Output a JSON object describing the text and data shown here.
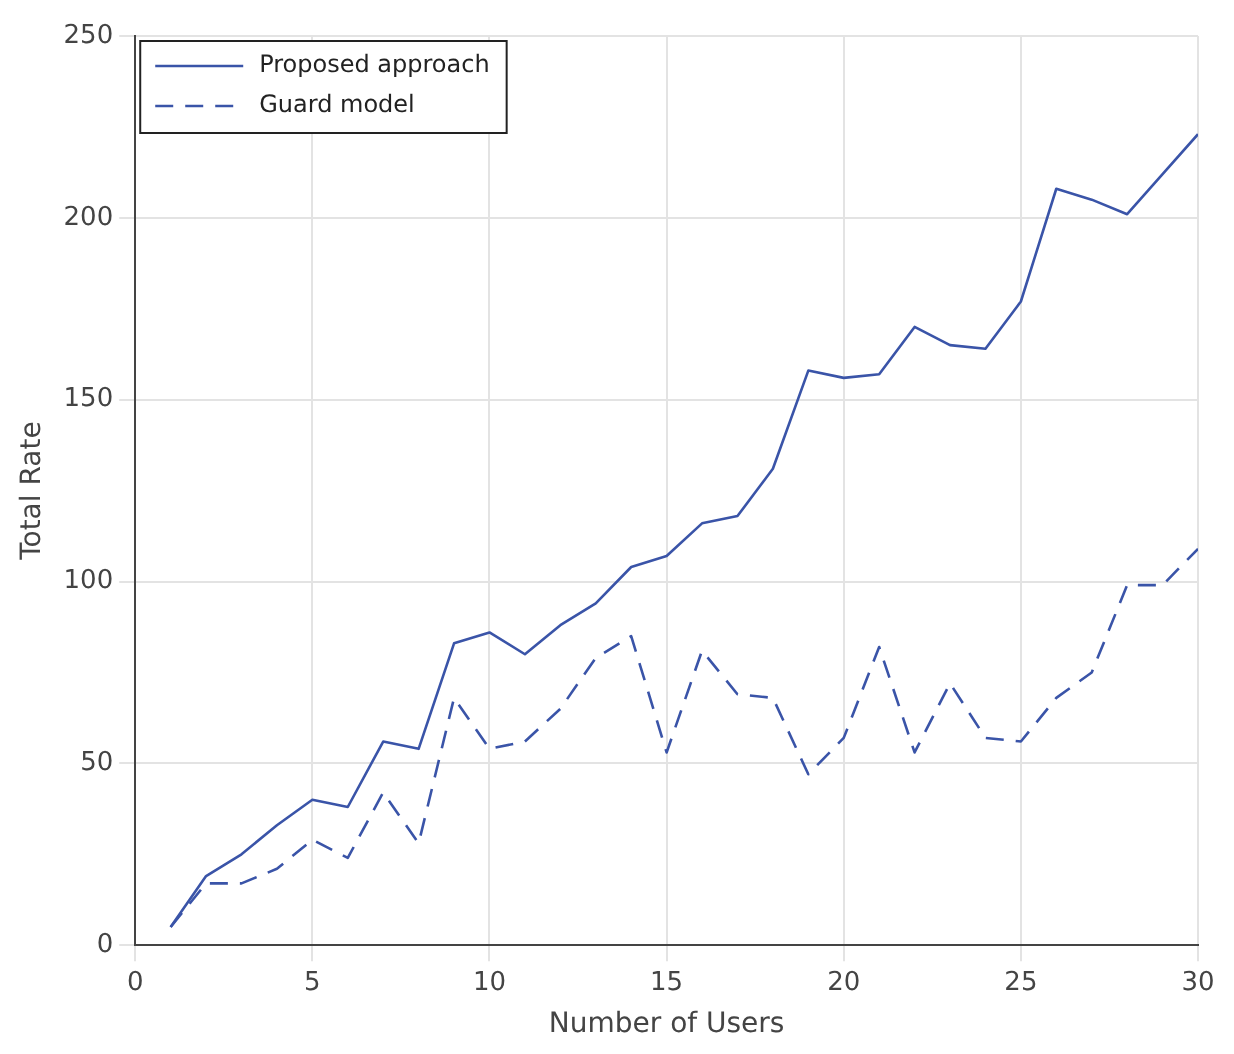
{
  "chart_data": {
    "type": "line",
    "xlabel": "Number of Users",
    "ylabel": "Total Rate",
    "x": [
      1,
      2,
      3,
      4,
      5,
      6,
      7,
      8,
      9,
      10,
      11,
      12,
      13,
      14,
      15,
      16,
      17,
      18,
      19,
      20,
      21,
      22,
      23,
      24,
      25,
      26,
      27,
      28,
      29,
      30
    ],
    "series": [
      {
        "name": "Proposed approach",
        "color": "#3a54a8",
        "line_style": "solid",
        "values": [
          5,
          19,
          25,
          33,
          40,
          38,
          56,
          54,
          83,
          86,
          80,
          88,
          94,
          104,
          107,
          116,
          118,
          131,
          158,
          156,
          157,
          170,
          165,
          164,
          177,
          208,
          205,
          201,
          212,
          223
        ]
      },
      {
        "name": "Guard model",
        "color": "#3a54a8",
        "line_style": "dashed",
        "values": [
          5,
          17,
          17,
          21,
          29,
          24,
          42,
          28,
          68,
          54,
          56,
          65,
          79,
          85,
          53,
          81,
          69,
          68,
          47,
          57,
          82,
          53,
          72,
          57,
          56,
          68,
          75,
          99,
          99,
          109
        ]
      }
    ],
    "xlim": [
      0,
      30
    ],
    "xticks": [
      0,
      5,
      10,
      15,
      20,
      25,
      30
    ],
    "ylim": [
      0,
      250
    ],
    "yticks": [
      0,
      50,
      100,
      150,
      200,
      250
    ],
    "grid": true,
    "legend": "top left",
    "marker": "none"
  }
}
